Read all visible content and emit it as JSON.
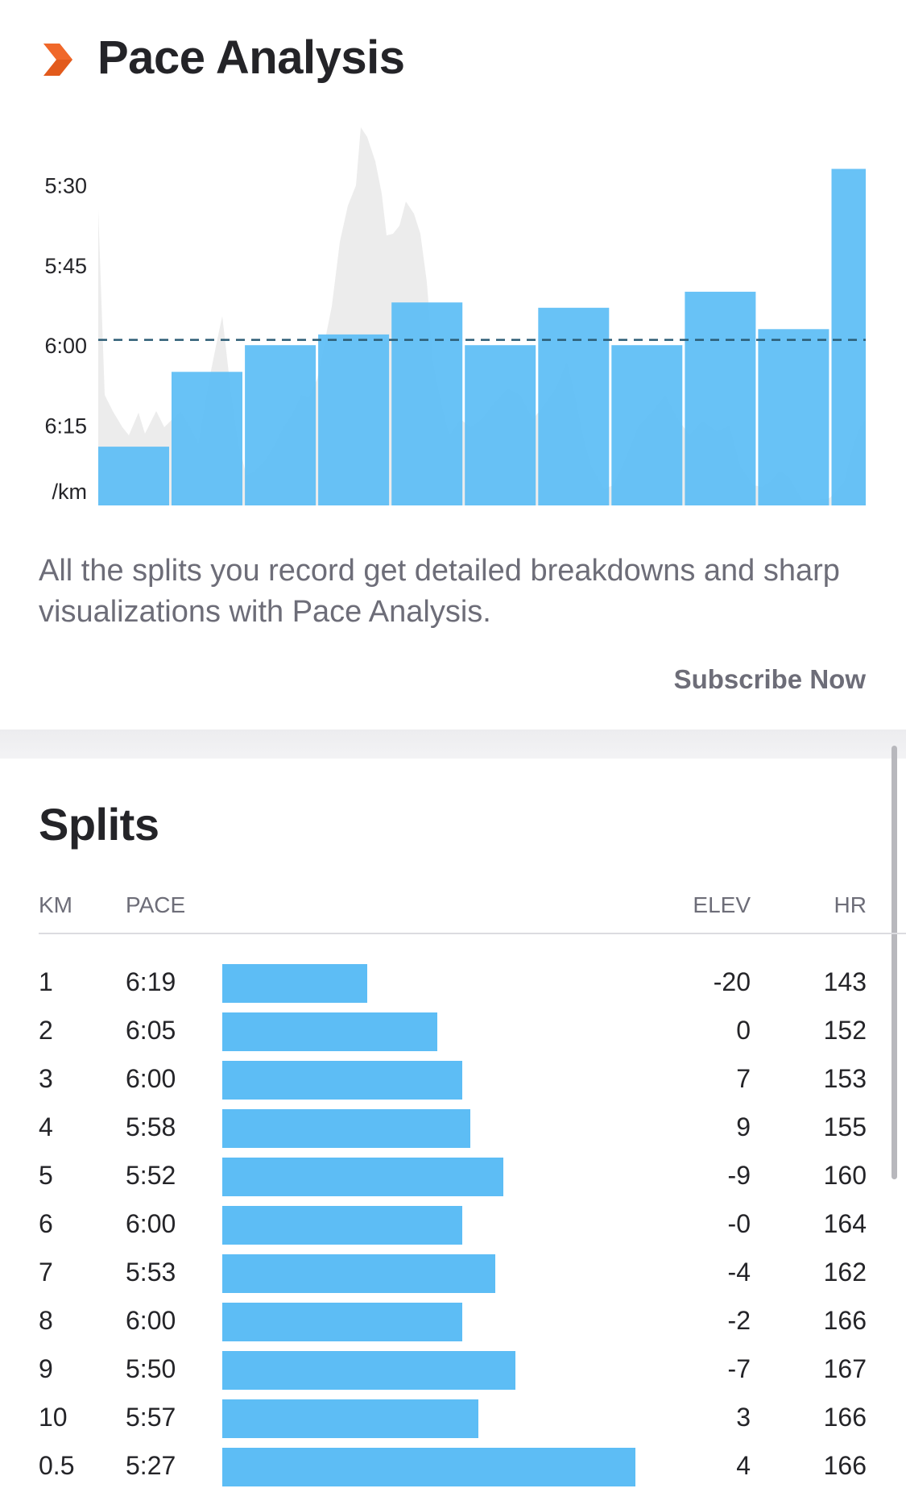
{
  "header": {
    "icon": "chevron-right-icon",
    "title": "Pace Analysis",
    "accent_color": "#e25a1c"
  },
  "chart_data": {
    "type": "bar",
    "bar_color": "#5dbdf5",
    "yticks": [
      "5:30",
      "5:45",
      "6:00",
      "6:15"
    ],
    "ylabel": "/km",
    "y_axis": "pace (sec/km), reversed — faster pace higher",
    "ylim_sec": [
      315,
      390
    ],
    "categories": [
      "1",
      "2",
      "3",
      "4",
      "5",
      "6",
      "7",
      "8",
      "9",
      "10",
      "0.5"
    ],
    "values": [
      "6:19",
      "6:05",
      "6:00",
      "5:58",
      "5:52",
      "6:00",
      "5:53",
      "6:00",
      "5:50",
      "5:57",
      "5:27"
    ],
    "bar_widths": [
      1,
      1,
      1,
      1,
      1,
      1,
      1,
      1,
      1,
      1,
      0.5
    ],
    "average_line": "5:59",
    "grid": false,
    "legend": "none",
    "background_series": "elevation profile (gray area)"
  },
  "description": "All the splits you record get detailed breakdowns and sharp visualizations with Pace Analysis.",
  "subscribe_label": "Subscribe Now",
  "splits": {
    "title": "Splits",
    "headers": {
      "km": "KM",
      "pace": "PACE",
      "elev": "ELEV",
      "hr": "HR"
    },
    "rows": [
      {
        "km": "1",
        "pace": "6:19",
        "elev": "-20",
        "hr": "143",
        "bar_fraction": 0.35
      },
      {
        "km": "2",
        "pace": "6:05",
        "elev": "0",
        "hr": "152",
        "bar_fraction": 0.52
      },
      {
        "km": "3",
        "pace": "6:00",
        "elev": "7",
        "hr": "153",
        "bar_fraction": 0.58
      },
      {
        "km": "4",
        "pace": "5:58",
        "elev": "9",
        "hr": "155",
        "bar_fraction": 0.6
      },
      {
        "km": "5",
        "pace": "5:52",
        "elev": "-9",
        "hr": "160",
        "bar_fraction": 0.68
      },
      {
        "km": "6",
        "pace": "6:00",
        "elev": "-0",
        "hr": "164",
        "bar_fraction": 0.58
      },
      {
        "km": "7",
        "pace": "5:53",
        "elev": "-4",
        "hr": "162",
        "bar_fraction": 0.66
      },
      {
        "km": "8",
        "pace": "6:00",
        "elev": "-2",
        "hr": "166",
        "bar_fraction": 0.58
      },
      {
        "km": "9",
        "pace": "5:50",
        "elev": "-7",
        "hr": "167",
        "bar_fraction": 0.71
      },
      {
        "km": "10",
        "pace": "5:57",
        "elev": "3",
        "hr": "166",
        "bar_fraction": 0.62
      },
      {
        "km": "0.5",
        "pace": "5:27",
        "elev": "4",
        "hr": "166",
        "bar_fraction": 1.0
      }
    ]
  }
}
